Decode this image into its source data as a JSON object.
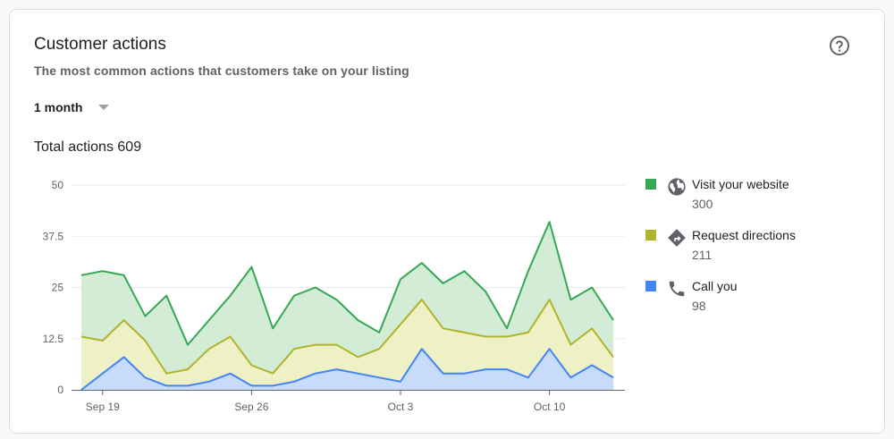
{
  "card": {
    "title": "Customer actions",
    "subtitle": "The most common actions that customers take on your listing",
    "period_label": "1 month",
    "total_label": "Total actions",
    "total_value": "609"
  },
  "icons": {
    "help": "help-circle-icon",
    "period_caret": "caret-down-icon"
  },
  "legend": [
    {
      "label": "Visit your website",
      "value": "300",
      "color": "#34a853",
      "icon": "globe-icon"
    },
    {
      "label": "Request directions",
      "value": "211",
      "color": "#afb42b",
      "icon": "directions-icon"
    },
    {
      "label": "Call you",
      "value": "98",
      "color": "#4285f4",
      "icon": "phone-icon"
    }
  ],
  "chart_data": {
    "type": "area",
    "stacked": true,
    "x": [
      "Sep 18",
      "Sep 19",
      "Sep 20",
      "Sep 21",
      "Sep 22",
      "Sep 23",
      "Sep 24",
      "Sep 25",
      "Sep 26",
      "Sep 27",
      "Sep 28",
      "Sep 29",
      "Sep 30",
      "Oct 1",
      "Oct 2",
      "Oct 3",
      "Oct 4",
      "Oct 5",
      "Oct 6",
      "Oct 7",
      "Oct 8",
      "Oct 9",
      "Oct 10",
      "Oct 11",
      "Oct 12",
      "Oct 13"
    ],
    "x_ticks": [
      "Sep 19",
      "Sep 26",
      "Oct 3",
      "Oct 10"
    ],
    "y_ticks": [
      "0",
      "12.5",
      "25",
      "37.5",
      "50"
    ],
    "ylim": [
      0,
      50
    ],
    "grid": true,
    "legend_position": "right",
    "series": [
      {
        "name": "Call you",
        "color": "#4285f4",
        "fill": "#c9dbfb",
        "values": [
          0,
          4,
          8,
          3,
          1,
          1,
          2,
          4,
          1,
          1,
          2,
          4,
          5,
          4,
          3,
          2,
          10,
          4,
          4,
          5,
          5,
          3,
          10,
          3,
          6,
          3
        ]
      },
      {
        "name": "Request directions",
        "color": "#afb42b",
        "fill": "#eef1c6",
        "values": [
          13,
          8,
          9,
          9,
          3,
          4,
          8,
          9,
          5,
          3,
          8,
          7,
          6,
          4,
          7,
          14,
          12,
          11,
          10,
          8,
          8,
          11,
          12,
          8,
          9,
          5
        ]
      },
      {
        "name": "Visit your website",
        "color": "#34a853",
        "fill": "#d3ecd5",
        "values": [
          15,
          17,
          11,
          6,
          19,
          6,
          7,
          10,
          24,
          11,
          13,
          14,
          11,
          9,
          4,
          11,
          9,
          11,
          15,
          11,
          2,
          15,
          19,
          11,
          10,
          9
        ]
      }
    ]
  }
}
